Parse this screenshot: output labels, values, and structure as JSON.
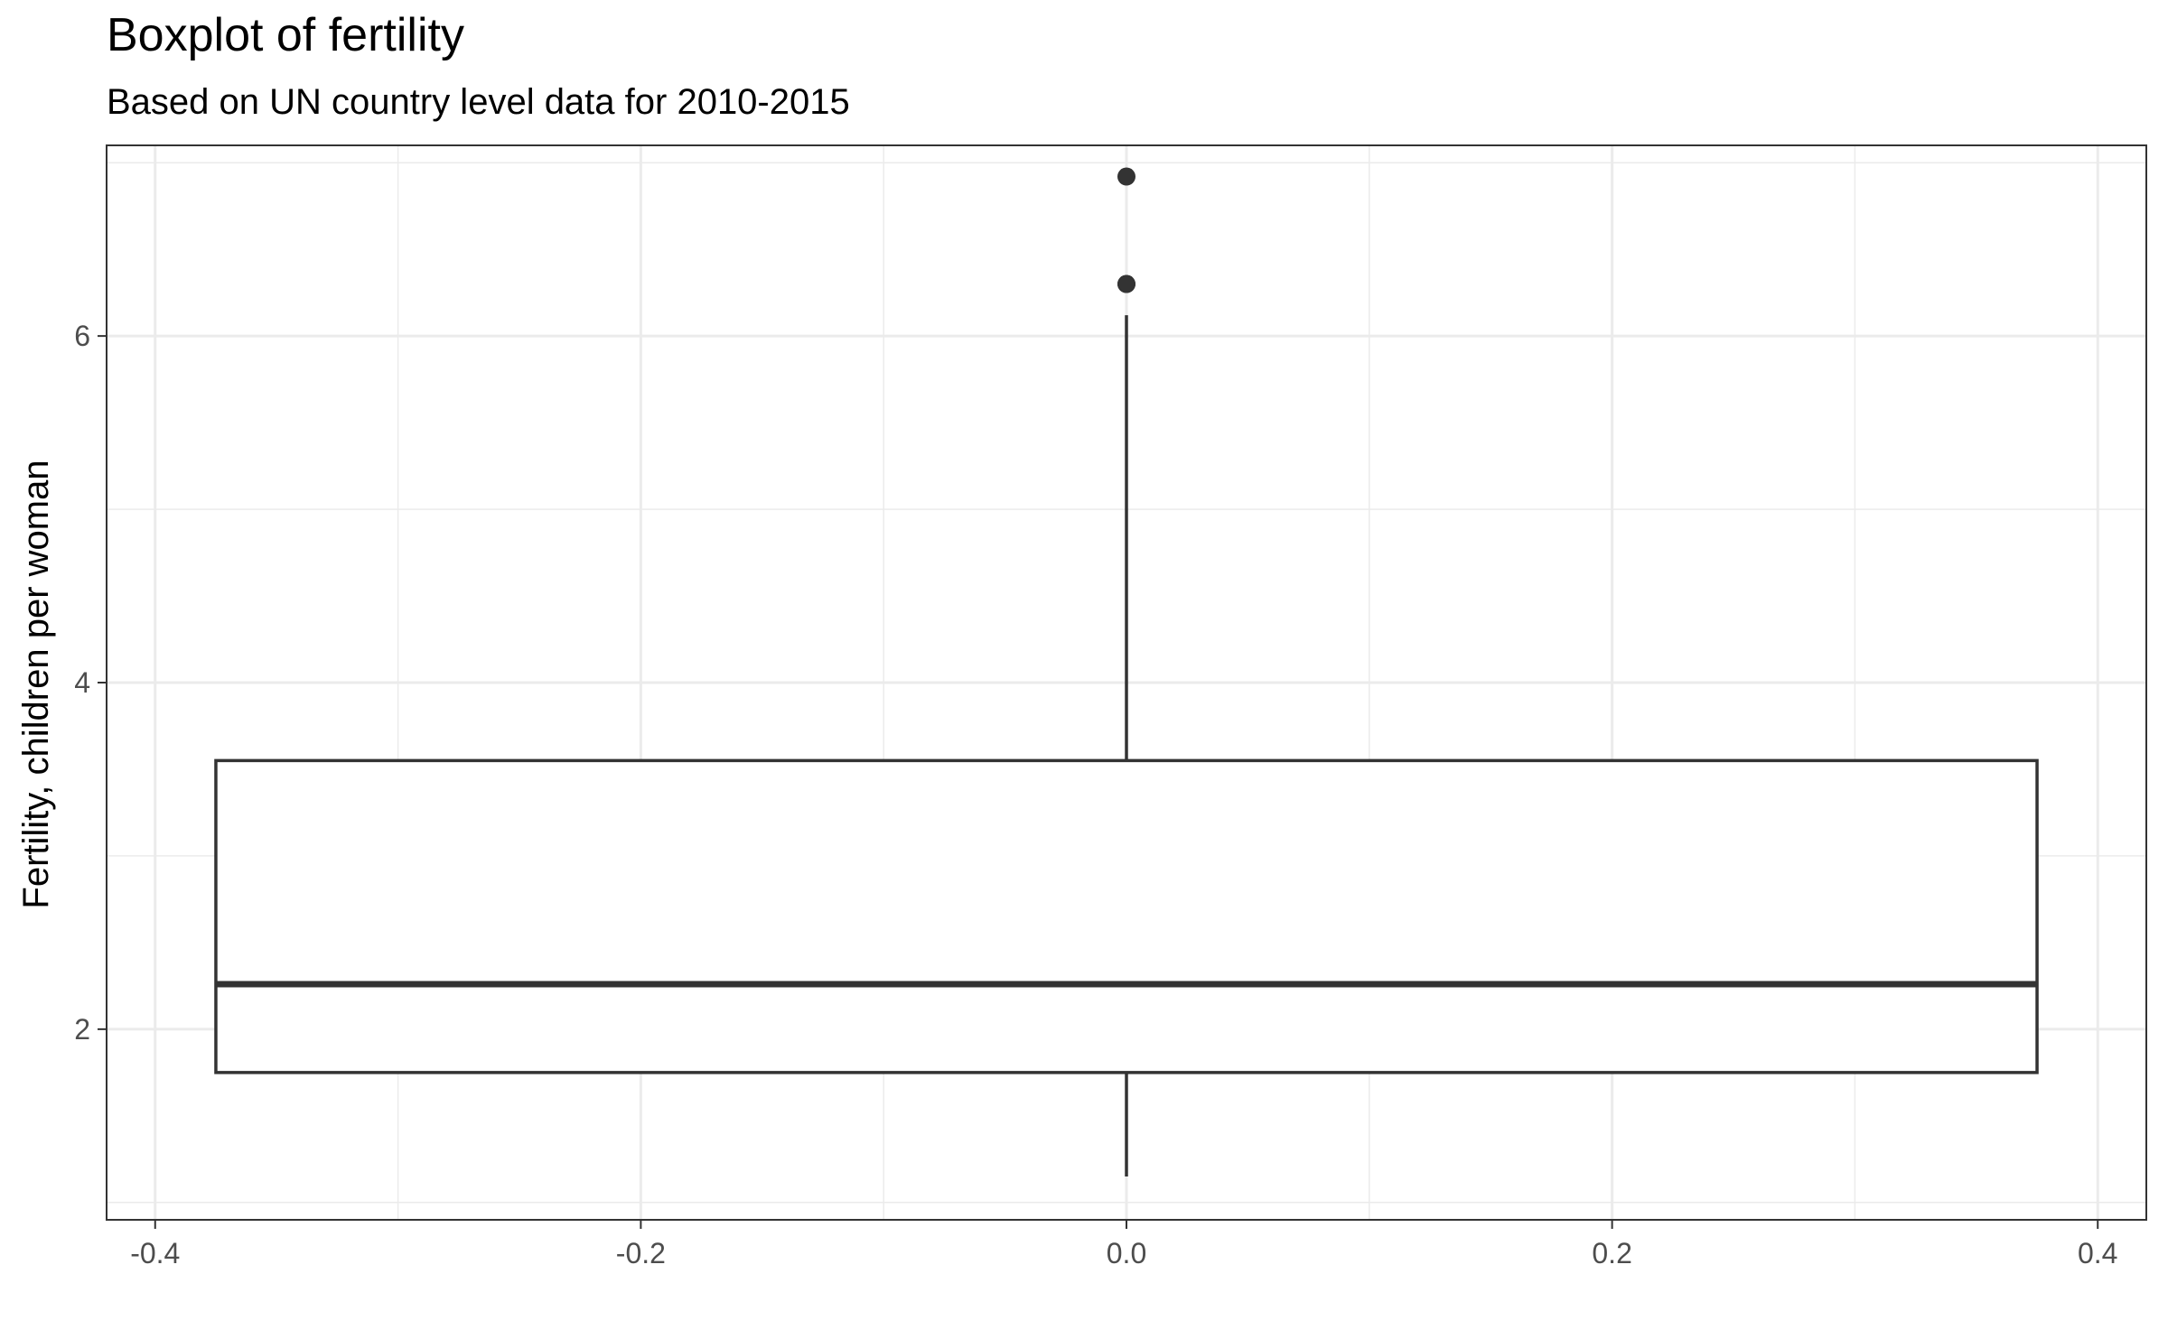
{
  "chart_data": {
    "type": "boxplot",
    "title": "Boxplot of fertility",
    "subtitle": "Based on UN country level data for 2010-2015",
    "xlabel": "",
    "ylabel": "Fertility, children per woman",
    "xlim": [
      -0.42,
      0.42
    ],
    "ylim": [
      0.9,
      7.1
    ],
    "x_ticks": [
      -0.4,
      -0.2,
      0.0,
      0.2,
      0.4
    ],
    "x_tick_labels": [
      "-0.4",
      "-0.2",
      "0.0",
      "0.2",
      "0.4"
    ],
    "y_ticks": [
      2,
      4,
      6
    ],
    "y_tick_labels": [
      "2",
      "4",
      "6"
    ],
    "grid": true,
    "box": {
      "x": 0.0,
      "x_left": -0.375,
      "x_right": 0.375,
      "whisker_low": 1.15,
      "q1": 1.75,
      "median": 2.26,
      "q3": 3.55,
      "whisker_high": 6.12
    },
    "outliers": [
      6.3,
      6.3,
      6.92
    ],
    "colors": {
      "box_stroke": "#333333",
      "box_fill": "#ffffff",
      "grid_major": "#ebebeb",
      "grid_minor": "#ebebeb",
      "panel_border": "#333333",
      "outlier": "#333333"
    }
  }
}
